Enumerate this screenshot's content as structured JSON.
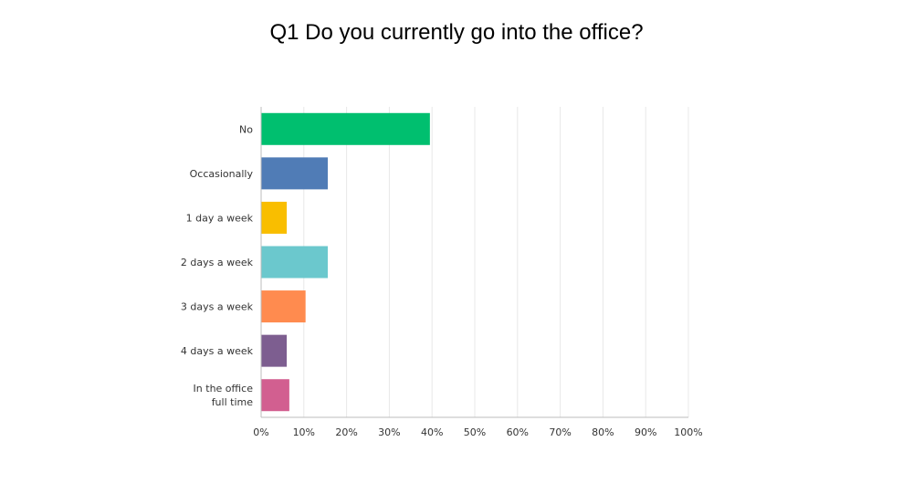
{
  "chart_data": {
    "type": "bar",
    "orientation": "horizontal",
    "title": "Q1 Do you currently go into the office?",
    "categories": [
      "No",
      "Occasionally",
      "1 day a week",
      "2 days a week",
      "3 days a week",
      "4 days a week",
      "In the office full time"
    ],
    "category_lines": [
      [
        "No"
      ],
      [
        "Occasionally"
      ],
      [
        "1 day a week"
      ],
      [
        "2 days a week"
      ],
      [
        "3 days a week"
      ],
      [
        "4 days a week"
      ],
      [
        "In the office",
        "full time"
      ]
    ],
    "values": [
      39.5,
      15.6,
      6.0,
      15.6,
      10.4,
      6.0,
      6.6
    ],
    "unit": "%",
    "colors": [
      "#00bf6f",
      "#507cb6",
      "#f9be00",
      "#6bc8cd",
      "#ff8b4f",
      "#7d5e90",
      "#d25f90"
    ],
    "xlim": [
      0,
      100
    ],
    "x_ticks": [
      "0%",
      "10%",
      "20%",
      "30%",
      "40%",
      "50%",
      "60%",
      "70%",
      "80%",
      "90%",
      "100%"
    ],
    "grid": true,
    "legend": "none"
  }
}
